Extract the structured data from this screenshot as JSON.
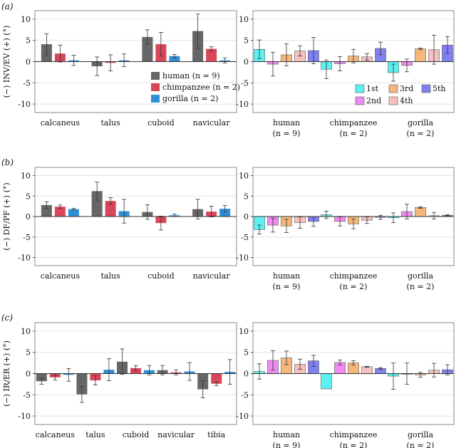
{
  "species_colors": {
    "human": "#666666",
    "chimpanzee": "#d9465a",
    "gorilla": "#2e8fd6"
  },
  "digit_colors": {
    "1st": "#5cf0f0",
    "2nd": "#f08cf0",
    "3rd": "#f5b87a",
    "4th": "#f5c0c0",
    "5th": "#8080f0"
  },
  "legend_species": [
    {
      "key": "human",
      "label": "human (n = 9)"
    },
    {
      "key": "chimpanzee",
      "label": "chimpanzee (n = 2)"
    },
    {
      "key": "gorilla",
      "label": "gorilla (n = 2)"
    }
  ],
  "legend_digits": [
    {
      "key": "1st",
      "label": "1st"
    },
    {
      "key": "2nd",
      "label": "2nd"
    },
    {
      "key": "3rd",
      "label": "3rd"
    },
    {
      "key": "4th",
      "label": "4th"
    },
    {
      "key": "5th",
      "label": "5th"
    }
  ],
  "chart_data": [
    {
      "id": "a-left",
      "panel_label": "(a)",
      "type": "bar",
      "grouped_by": "bone",
      "ylabel": "(−) INV/EV (+) (°)",
      "ylim": [
        -12,
        12
      ],
      "yticks": [
        -10,
        -5,
        0,
        5,
        10
      ],
      "categories": [
        "calcaneus",
        "talus",
        "cuboid",
        "navicular"
      ],
      "series": [
        {
          "name": "human",
          "values": [
            4.1,
            -1.1,
            5.8,
            7.2
          ],
          "errors": [
            2.5,
            2.2,
            1.7,
            4.0
          ]
        },
        {
          "name": "chimpanzee",
          "values": [
            1.9,
            -0.3,
            4.1,
            3.0
          ],
          "errors": [
            2.0,
            1.9,
            2.8,
            0.5
          ]
        },
        {
          "name": "gorilla",
          "values": [
            0.3,
            0.3,
            1.3,
            0.3
          ],
          "errors": [
            1.2,
            1.5,
            0.4,
            0.6
          ]
        }
      ],
      "legend": "species"
    },
    {
      "id": "a-right",
      "type": "bar",
      "grouped_by": "species",
      "ylim": [
        -12,
        12
      ],
      "yticks": [
        -10,
        -5,
        0,
        5,
        10
      ],
      "categories": [
        "human",
        "chimpanzee",
        "gorilla"
      ],
      "category_n": [
        "(n = 9)",
        "(n = 2)",
        "(n = 2)"
      ],
      "series": [
        {
          "name": "1st",
          "values": [
            2.9,
            -1.8,
            -2.6
          ],
          "errors": [
            2.2,
            2.2,
            2.0
          ]
        },
        {
          "name": "2nd",
          "values": [
            -0.6,
            -0.5,
            -0.9
          ],
          "errors": [
            2.8,
            1.7,
            1.5
          ]
        },
        {
          "name": "3rd",
          "values": [
            1.6,
            1.3,
            3.0
          ],
          "errors": [
            2.6,
            1.6,
            0.2
          ]
        },
        {
          "name": "4th",
          "values": [
            2.5,
            1.1,
            2.8
          ],
          "errors": [
            1.2,
            0.8,
            3.4
          ]
        },
        {
          "name": "5th",
          "values": [
            2.6,
            3.1,
            3.9
          ],
          "errors": [
            3.1,
            1.5,
            2.0
          ]
        }
      ],
      "legend": "digits"
    },
    {
      "id": "b-left",
      "panel_label": "(b)",
      "type": "bar",
      "grouped_by": "bone",
      "ylabel": "(−) DF/PF (+) (°)",
      "ylim": [
        -12,
        12
      ],
      "yticks": [
        -10,
        -5,
        0,
        5,
        10
      ],
      "categories": [
        "calcaneus",
        "talus",
        "cuboid",
        "navicular"
      ],
      "series": [
        {
          "name": "human",
          "values": [
            2.8,
            6.2,
            1.1,
            1.8
          ],
          "errors": [
            0.8,
            2.2,
            1.8,
            2.4
          ]
        },
        {
          "name": "chimpanzee",
          "values": [
            2.4,
            3.8,
            -1.6,
            1.2
          ],
          "errors": [
            0.4,
            0.8,
            1.7,
            1.3
          ]
        },
        {
          "name": "gorilla",
          "values": [
            1.8,
            1.3,
            0.3,
            1.9
          ],
          "errors": [
            0.2,
            2.9,
            0.3,
            0.8
          ]
        }
      ]
    },
    {
      "id": "b-right",
      "type": "bar",
      "grouped_by": "species",
      "ylim": [
        -12,
        12
      ],
      "yticks": [
        -10,
        -5,
        0,
        5,
        10
      ],
      "categories": [
        "human",
        "chimpanzee",
        "gorilla"
      ],
      "category_n": [
        "(n = 9)",
        "(n = 2)",
        "(n = 2)"
      ],
      "series": [
        {
          "name": "1st",
          "values": [
            -3.2,
            0.4,
            -0.3
          ],
          "errors": [
            1.1,
            0.9,
            1.2
          ]
        },
        {
          "name": "2nd",
          "values": [
            -2.1,
            -1.2,
            1.2
          ],
          "errors": [
            1.7,
            1.1,
            1.8
          ]
        },
        {
          "name": "3rd",
          "values": [
            -2.3,
            -1.8,
            2.2
          ],
          "errors": [
            1.6,
            1.2,
            0.2
          ]
        },
        {
          "name": "4th",
          "values": [
            -1.5,
            -0.9,
            0.2
          ],
          "errors": [
            1.4,
            0.8,
            0.8
          ]
        },
        {
          "name": "5th",
          "values": [
            -1.2,
            -0.2,
            0.3
          ],
          "errors": [
            1.2,
            0.5,
            0.1
          ]
        }
      ]
    },
    {
      "id": "c-left",
      "panel_label": "(c)",
      "type": "bar",
      "grouped_by": "bone",
      "ylabel": "(−) IR/ER (+) (°)",
      "ylim": [
        -12,
        12
      ],
      "yticks": [
        -10,
        -5,
        0,
        5,
        10
      ],
      "categories": [
        "calcaneus",
        "talus",
        "cuboid",
        "navicular",
        "tibia"
      ],
      "series": [
        {
          "name": "human",
          "values": [
            -1.8,
            -4.9,
            2.8,
            0.8,
            -3.7
          ],
          "errors": [
            0.7,
            1.9,
            3.0,
            1.1,
            2.0
          ]
        },
        {
          "name": "chimpanzee",
          "values": [
            -0.9,
            -1.6,
            1.3,
            0.3,
            -2.4
          ],
          "errors": [
            0.6,
            1.1,
            0.6,
            0.6,
            0.4
          ]
        },
        {
          "name": "gorilla",
          "values": [
            -0.3,
            0.9,
            0.8,
            0.5,
            0.4
          ],
          "errors": [
            1.5,
            2.6,
            1.1,
            2.1,
            2.9
          ]
        }
      ]
    },
    {
      "id": "c-right",
      "type": "bar",
      "grouped_by": "species",
      "ylim": [
        -12,
        12
      ],
      "yticks": [
        -10,
        -5,
        0,
        5,
        10
      ],
      "categories": [
        "human",
        "chimpanzee",
        "gorilla"
      ],
      "category_n": [
        "(n = 9)",
        "(n = 2)",
        "(n = 2)"
      ],
      "series": [
        {
          "name": "1st",
          "values": [
            0.5,
            -3.6,
            -0.6
          ],
          "errors": [
            1.8,
            0.0,
            3.1
          ]
        },
        {
          "name": "2nd",
          "values": [
            3.1,
            2.6,
            0.0
          ],
          "errors": [
            2.3,
            0.6,
            2.5
          ]
        },
        {
          "name": "3rd",
          "values": [
            3.7,
            2.5,
            -0.3
          ],
          "errors": [
            1.6,
            0.5,
            0.6
          ]
        },
        {
          "name": "4th",
          "values": [
            2.2,
            1.6,
            0.8
          ],
          "errors": [
            1.2,
            0.1,
            1.6
          ]
        },
        {
          "name": "5th",
          "values": [
            3.0,
            1.2,
            0.9
          ],
          "errors": [
            1.3,
            0.2,
            1.2
          ]
        }
      ]
    }
  ]
}
